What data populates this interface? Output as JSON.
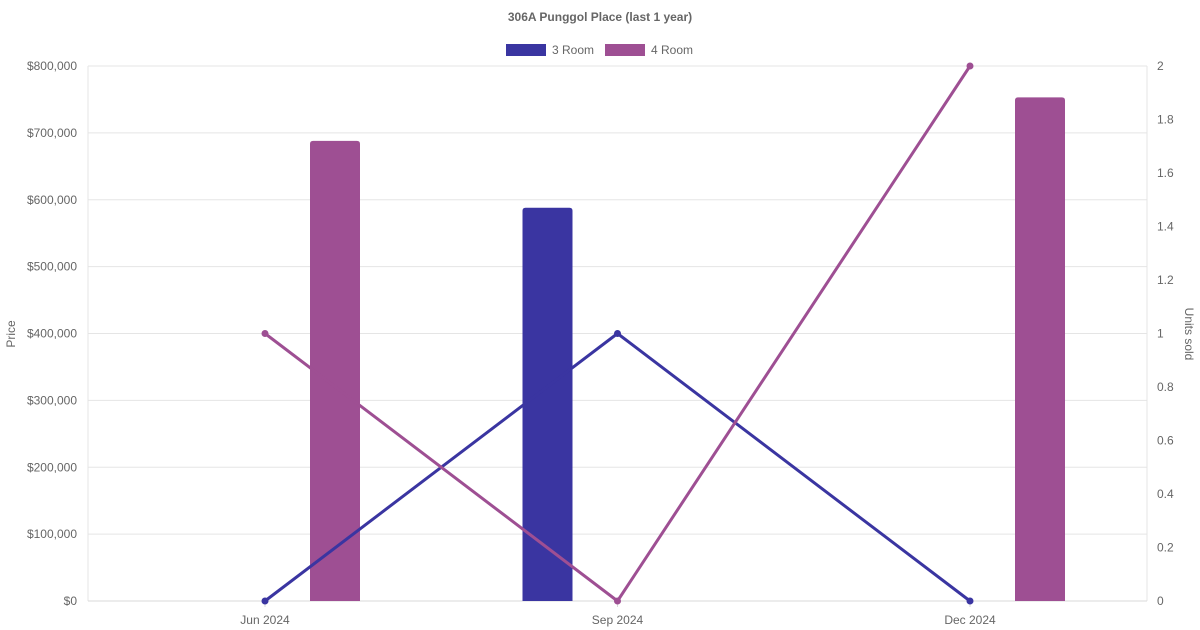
{
  "chart_data": {
    "type": "bar+line",
    "title": "306A Punggol Place (last 1 year)",
    "categories": [
      "Jun 2024",
      "Sep 2024",
      "Dec 2024"
    ],
    "y_left": {
      "label": "Price",
      "range": [
        0,
        800000
      ],
      "ticks": [
        "$0",
        "$100,000",
        "$200,000",
        "$300,000",
        "$400,000",
        "$500,000",
        "$600,000",
        "$700,000",
        "$800,000"
      ]
    },
    "y_right": {
      "label": "Units sold",
      "range": [
        0,
        2
      ],
      "ticks": [
        "0",
        "0.2",
        "0.4",
        "0.6",
        "0.8",
        "1",
        "1.2",
        "1.4",
        "1.6",
        "1.8",
        "2"
      ]
    },
    "series": [
      {
        "name": "3 Room",
        "color": "#3a35a1",
        "price": [
          null,
          588000,
          null
        ],
        "units_sold": [
          0,
          1,
          0
        ]
      },
      {
        "name": "4 Room",
        "color": "#9e4f93",
        "price": [
          688000,
          null,
          753000
        ],
        "units_sold": [
          1,
          0,
          2
        ]
      }
    ],
    "grid": true,
    "legend_position": "top-center"
  }
}
